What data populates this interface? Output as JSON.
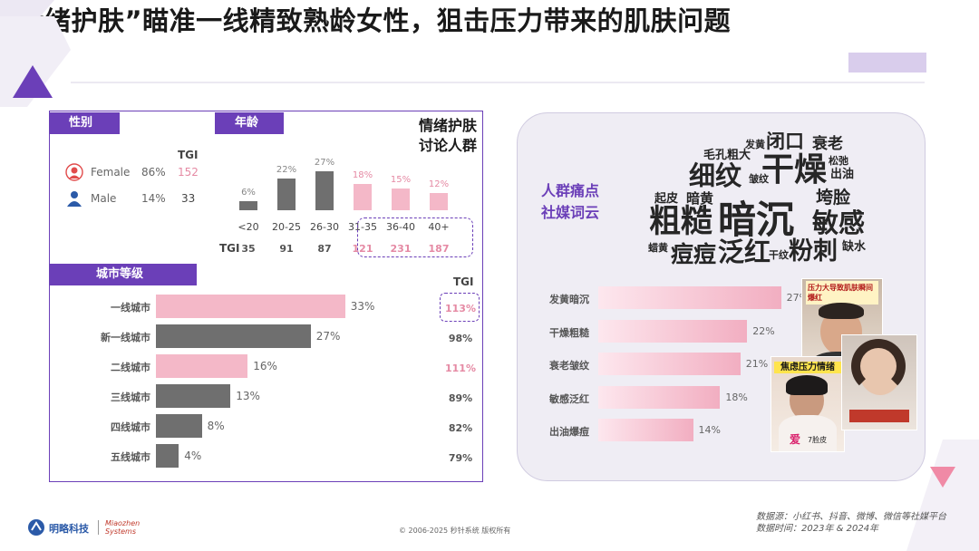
{
  "title": "“情绪护肤”瞄准一线精致熟龄女性，狙击压力带来的肌肤问题",
  "colors": {
    "purple": "#6b3fb8",
    "pink": "#f4b8c8",
    "gray": "#6f6f6f",
    "pink_text": "#e58aa4"
  },
  "gender": {
    "header": "性别",
    "tgi_label": "TGI",
    "rows": [
      {
        "icon": "female-icon",
        "label": "Female",
        "pct": "86%",
        "tgi": "152"
      },
      {
        "icon": "male-icon",
        "label": "Male",
        "pct": "14%",
        "tgi": "33"
      }
    ]
  },
  "panel_title_line1": "情绪护肤",
  "panel_title_line2": "讨论人群",
  "city_tgi_header": "TGI",
  "wordcloud_label_line1": "人群痛点",
  "wordcloud_label_line2": "社媒词云",
  "wordcloud_words": [
    "发黄",
    "闭口",
    "衰老",
    "毛孔粗大",
    "细纹",
    "干燥",
    "松弛",
    "出油",
    "皱纹",
    "起皮",
    "暗黄",
    "垮脸",
    "粗糙",
    "暗沉",
    "敏感",
    "蜡黄",
    "痘痘",
    "泛红",
    "干纹",
    "粉刺",
    "缺水"
  ],
  "photo_captions": {
    "a": "压力大导致肌肤瞬间爆红",
    "b": "焦虑压力情绪",
    "c": "爱",
    "d": "7脸皮"
  },
  "footer": {
    "logo1": "明略科技",
    "logo2": "Miaozhen Systems",
    "copyright": "© 2006-2025 秒针系统 版权所有",
    "source1": "数据源：小红书、抖音、微博、微信等社媒平台",
    "source2": "数据时间：2023年 & 2024年"
  },
  "chart_data": [
    {
      "type": "bar",
      "header": "年龄",
      "categories": [
        "<20",
        "20-25",
        "26-30",
        "31-35",
        "36-40",
        "40+"
      ],
      "values": [
        6,
        22,
        27,
        18,
        15,
        12
      ],
      "value_labels": [
        "6%",
        "22%",
        "27%",
        "18%",
        "15%",
        "12%"
      ],
      "tgi_label": "TGI",
      "tgi": [
        "35",
        "91",
        "87",
        "121",
        "231",
        "187"
      ],
      "highlight": [
        3,
        4,
        5
      ],
      "ylim": [
        0,
        30
      ]
    },
    {
      "type": "bar",
      "orientation": "horizontal",
      "header": "城市等级",
      "categories": [
        "一线城市",
        "新一线城市",
        "二线城市",
        "三线城市",
        "四线城市",
        "五线城市"
      ],
      "values": [
        33,
        27,
        16,
        13,
        8,
        4
      ],
      "value_labels": [
        "33%",
        "27%",
        "16%",
        "13%",
        "8%",
        "4%"
      ],
      "tgi": [
        "113%",
        "98%",
        "111%",
        "89%",
        "82%",
        "79%"
      ],
      "highlight": [
        0,
        2
      ],
      "xlim": [
        0,
        40
      ]
    },
    {
      "type": "bar",
      "orientation": "horizontal",
      "categories": [
        "发黄暗沉",
        "干燥粗糙",
        "衰老皱纹",
        "敏感泛红",
        "出油爆痘"
      ],
      "values": [
        27,
        22,
        21,
        18,
        14
      ],
      "value_labels": [
        "27%",
        "22%",
        "21%",
        "18%",
        "14%"
      ],
      "xlim": [
        0,
        30
      ]
    }
  ]
}
